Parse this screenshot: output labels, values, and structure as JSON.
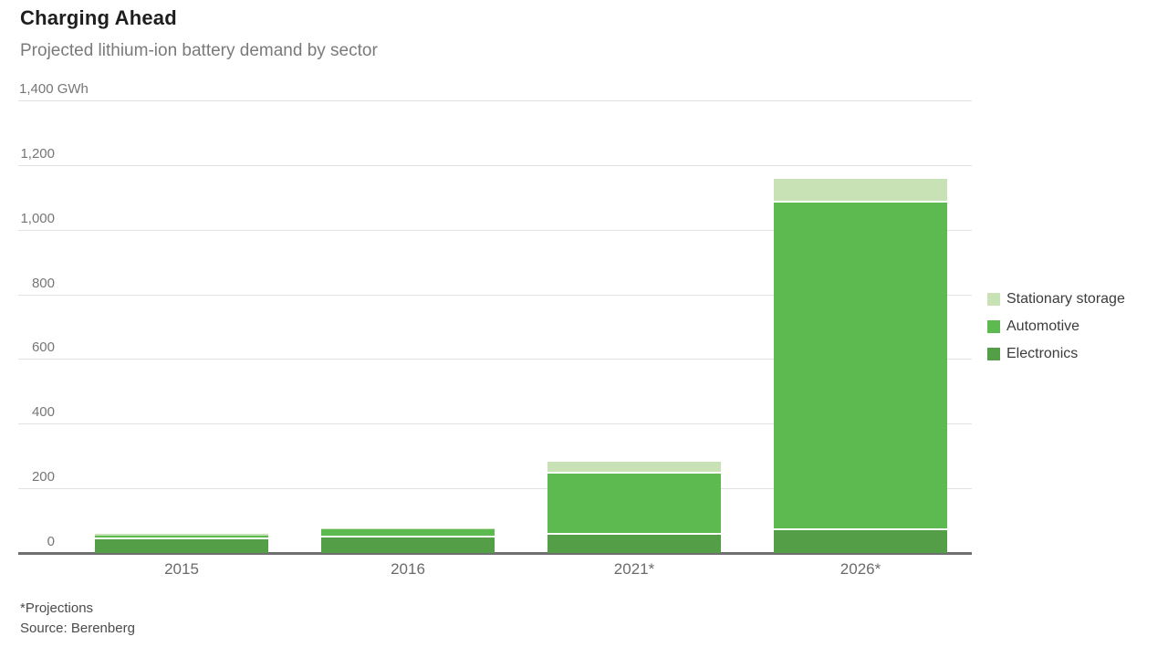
{
  "header": {
    "title": "Charging Ahead",
    "subtitle": "Projected lithium-ion battery demand by sector"
  },
  "chart_data": {
    "type": "bar",
    "stacked": true,
    "unit": "GWh",
    "title": "Charging Ahead",
    "subtitle": "Projected lithium-ion battery demand by sector",
    "categories": [
      "2015",
      "2016",
      "2021*",
      "2026*"
    ],
    "series": [
      {
        "name": "Electronics",
        "color": "#549e48",
        "values": [
          42,
          47,
          57,
          70
        ]
      },
      {
        "name": "Automotive",
        "color": "#5cba50",
        "values": [
          13,
          25,
          188,
          1015
        ]
      },
      {
        "name": "Stationary storage",
        "color": "#c8e2b6",
        "values": [
          3,
          3,
          36,
          72
        ]
      }
    ],
    "totals": [
      58,
      75,
      281,
      1157
    ],
    "legend_order": [
      "Stationary storage",
      "Automotive",
      "Electronics"
    ],
    "legend_position": "right",
    "grid": true,
    "y_axis": {
      "min": 0,
      "max": 1400,
      "tick_interval": 200,
      "tick_values": [
        0,
        200,
        400,
        600,
        800,
        1000,
        1200
      ],
      "tick_labels": [
        "0",
        "200",
        "400",
        "600",
        "800",
        "1,000",
        "1,200"
      ],
      "top_tick": {
        "value": 1400,
        "label": "1,400 GWh"
      }
    }
  },
  "footer": {
    "note": "*Projections",
    "source": "Source: Berenberg"
  }
}
